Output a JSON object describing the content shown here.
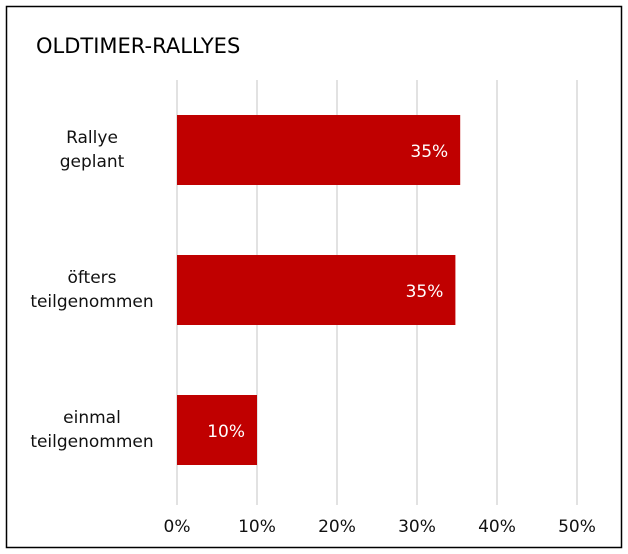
{
  "chart_data": {
    "type": "bar",
    "orientation": "horizontal",
    "title": "OLDTIMER-RALLYES",
    "categories": [
      "Rallye\ngeplant",
      "öfters\nteilgenommen",
      "einmal\nteilgenommen"
    ],
    "values": [
      35.4,
      34.8,
      10
    ],
    "value_labels": [
      "35%",
      "35%",
      "10%"
    ],
    "color": "#c00000",
    "xlim": [
      0,
      50
    ],
    "xticks": [
      {
        "value": 0,
        "label": "0%"
      },
      {
        "value": 10,
        "label": "10%"
      },
      {
        "value": 20,
        "label": "20%"
      },
      {
        "value": 30,
        "label": "30%"
      },
      {
        "value": 40,
        "label": "40%"
      },
      {
        "value": 50,
        "label": "50%"
      }
    ],
    "grid": true
  }
}
